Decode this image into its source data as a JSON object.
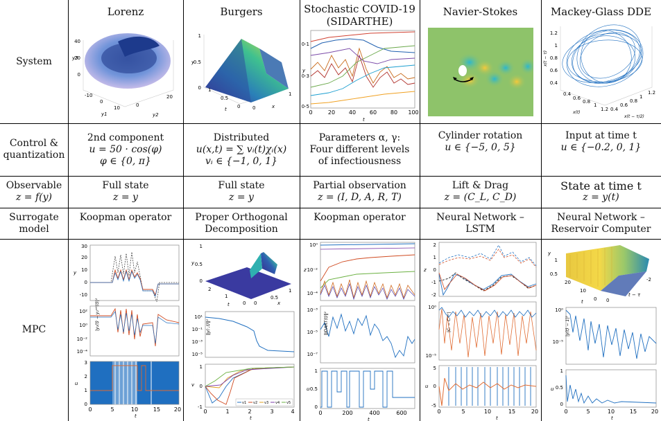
{
  "row_labels": {
    "system": "System",
    "control_line1": "Control &",
    "control_line2": "quantization",
    "observable_line1": "Observable",
    "observable_line2": "z = f(y)",
    "surrogate_line1": "Surrogate",
    "surrogate_line2": "model",
    "mpc": "MPC"
  },
  "columns": [
    {
      "system": "Lorenz",
      "control": [
        "2nd component",
        "u = 50 · cos(φ)",
        "φ ∈ {0, π}"
      ],
      "observable": [
        "Full state",
        "z = y"
      ],
      "surrogate": [
        "Koopman operator"
      ]
    },
    {
      "system": "Burgers",
      "control": [
        "Distributed",
        "u(x,t) = ∑ vᵢ(t)χᵢ(x)",
        "vᵢ ∈ {−1, 0, 1}"
      ],
      "observable": [
        "Full state",
        "z = y"
      ],
      "surrogate": [
        "Proper Orthogonal",
        "Decomposition"
      ]
    },
    {
      "system": "Stochastic COVID-19",
      "system2": "(SIDARTHE)",
      "control": [
        "Parameters α, γ:",
        "Four different levels",
        "of infectiousness"
      ],
      "observable": [
        "Partial observation",
        "z = (I, D, A, R, T)"
      ],
      "surrogate": [
        "Koopman operator"
      ]
    },
    {
      "system": "Navier-Stokes",
      "control": [
        "Cylinder rotation",
        "u ∈ {−5, 0, 5}"
      ],
      "observable": [
        "Lift & Drag",
        "z = (C_L, C_D)"
      ],
      "surrogate": [
        "Neural Network –",
        "LSTM"
      ]
    },
    {
      "system": "Mackey-Glass DDE",
      "control": [
        "Input at time t",
        "u ∈ {−0.2, 0, 1}"
      ],
      "observable": [
        "State at time t",
        "z = y(t)"
      ],
      "surrogate": [
        "Neural Network –",
        "Reservoir Computer"
      ]
    }
  ],
  "plots": {
    "lorenz_sys": {
      "zticks": [
        "40",
        "20",
        "0"
      ],
      "xticks": [
        "-10",
        "0",
        "10"
      ],
      "yticks": [
        "0",
        "20"
      ],
      "zlabel": "y3",
      "xlabel": "y1",
      "ylabel": "y2"
    },
    "burgers_sys": {
      "zticks": [
        "1",
        "0.5",
        "0"
      ],
      "tticks": [
        "1",
        "0.5",
        "0"
      ],
      "xticks": [
        "0",
        "1"
      ],
      "zlabel": "y",
      "tlabel": "t",
      "xlabel": "x"
    },
    "covid_sys": {
      "yticks": [
        "10-1",
        "10-3",
        "10-5"
      ],
      "xticks": [
        "0",
        "20",
        "40",
        "60",
        "80",
        "100"
      ],
      "ylabel": "y",
      "xlabel": "t"
    },
    "mg_sys": {
      "zticks": [
        "1.2",
        "1",
        "0.8",
        "0.6",
        "0.4"
      ],
      "xticks": [
        "0.4",
        "0.6",
        "0.8",
        "1",
        "1.2"
      ],
      "yticks": [
        "0.4",
        "0.6",
        "0.8",
        "1",
        "1.2"
      ],
      "zlabel": "x(t − τ)",
      "xlabel": "x(t)",
      "ylabel": "x(t − τ/2)"
    },
    "lorenz_mpc1": {
      "yticks": [
        "30",
        "20",
        "10",
        "0",
        "-10"
      ],
      "ylabel": "y"
    },
    "lorenz_mpc2": {
      "yticks": [
        "10²",
        "10⁰",
        "10⁻²",
        "10⁻⁴"
      ],
      "ylabel": "|y₂(t) − y₂ʳᵉᶠ(t)|²"
    },
    "lorenz_mpc3": {
      "yticks": [
        "3",
        "2",
        "1",
        "0"
      ],
      "xticks": [
        "0",
        "5",
        "10",
        "15",
        "20"
      ],
      "ylabel": "u",
      "xlabel": "t"
    },
    "burgers_mpc1": {
      "zticks": [
        "1",
        "0.5",
        "0"
      ],
      "tticks": [
        "2",
        "1",
        "0"
      ],
      "xticks": [
        "0",
        "0.5",
        "1"
      ],
      "zlabel": "y",
      "tlabel": "t",
      "xlabel": "x"
    },
    "burgers_mpc2": {
      "yticks": [
        "10¹",
        "10⁻¹",
        "10⁻³",
        "10⁻⁵"
      ],
      "ylabel": "‖y(·,t)‖²"
    },
    "burgers_mpc3": {
      "yticks": [
        "1",
        "0",
        "-1"
      ],
      "xticks": [
        "0",
        "1",
        "2",
        "3",
        "4"
      ],
      "ylabel": "v",
      "xlabel": "t",
      "legend": [
        "v1",
        "v2",
        "v3",
        "v4",
        "v5"
      ]
    },
    "covid_mpc1": {
      "yticks": [
        "10⁰",
        "10⁻²",
        "10⁻⁴"
      ],
      "ylabel": "z"
    },
    "covid_mpc2": {
      "yticks": [
        "10⁻³",
        "10⁻⁵",
        "10⁻⁷"
      ],
      "ylabel": "‖IDART(t)‖²"
    },
    "covid_mpc3": {
      "yticks": [
        "1",
        "0.5",
        "0"
      ],
      "xticks": [
        "0",
        "200",
        "400",
        "600"
      ],
      "ylabel": "u",
      "xlabel": "t"
    },
    "ns_mpc1": {
      "yticks": [
        "2",
        "1",
        "0",
        "-1",
        "-2"
      ],
      "ylabel": "z"
    },
    "ns_mpc2": {
      "yticks": [
        "10⁰",
        "10⁻⁵"
      ],
      "ylabel": "|Cᵢ − Cᵢʳᵉᶠ|"
    },
    "ns_mpc3": {
      "yticks": [
        "5",
        "0",
        "-5"
      ],
      "xticks": [
        "0",
        "5",
        "10",
        "15",
        "20"
      ],
      "ylabel": "u",
      "xlabel": "t"
    },
    "mg_mpc1": {
      "zticks": [
        "1",
        "0.5"
      ],
      "tticks": [
        "20",
        "10",
        "0"
      ],
      "xticks": [
        "0",
        "-2"
      ],
      "zlabel": "y",
      "tlabel": "t",
      "xlabel": "t − τ"
    },
    "mg_mpc2": {
      "yticks": [
        "10⁰",
        "10⁻⁵"
      ],
      "ylabel": "|y(t) − 1|²"
    },
    "mg_mpc3": {
      "yticks": [
        "1",
        "0.5",
        "0"
      ],
      "xticks": [
        "0",
        "5",
        "10",
        "15",
        "20"
      ],
      "ylabel": "u",
      "xlabel": "t"
    }
  }
}
